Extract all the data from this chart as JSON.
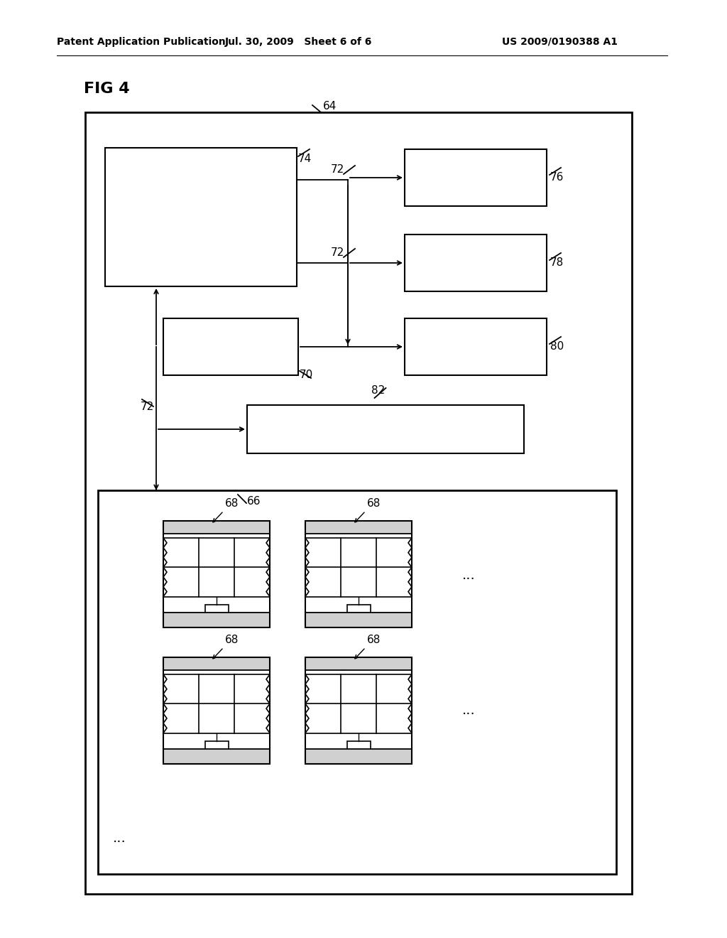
{
  "bg_color": "#ffffff",
  "header_left": "Patent Application Publication",
  "header_mid": "Jul. 30, 2009   Sheet 6 of 6",
  "header_right": "US 2009/0190388 A1",
  "fig_label": "FIG 4",
  "label_64": "64",
  "label_66": "66",
  "label_68": "68",
  "label_70": "70",
  "label_72": "72",
  "label_74": "74",
  "label_76": "76",
  "label_78": "78",
  "label_80": "80",
  "label_82": "82"
}
